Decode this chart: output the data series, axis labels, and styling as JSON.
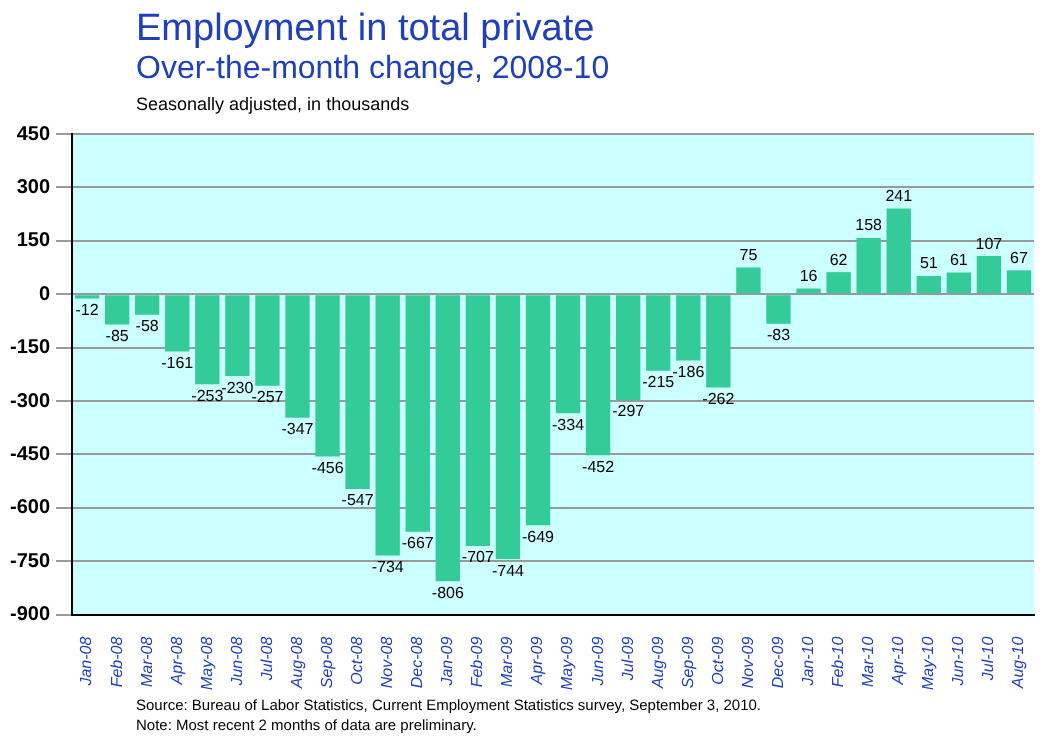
{
  "chart_data": {
    "type": "bar",
    "title": "Employment in total private",
    "subtitle": "Over-the-month change, 2008-10",
    "ylabel": "Seasonally adjusted, in thousands",
    "categories": [
      "Jan-08",
      "Feb-08",
      "Mar-08",
      "Apr-08",
      "May-08",
      "Jun-08",
      "Jul-08",
      "Aug-08",
      "Sep-08",
      "Oct-08",
      "Nov-08",
      "Dec-08",
      "Jan-09",
      "Feb-09",
      "Mar-09",
      "Apr-09",
      "May-09",
      "Jun-09",
      "Jul-09",
      "Aug-09",
      "Sep-09",
      "Oct-09",
      "Nov-09",
      "Dec-09",
      "Jan-10",
      "Feb-10",
      "Mar-10",
      "Apr-10",
      "May-10",
      "Jun-10",
      "Jul-10",
      "Aug-10"
    ],
    "values": [
      -12,
      -85,
      -58,
      -161,
      -253,
      -230,
      -257,
      -347,
      -456,
      -547,
      -734,
      -667,
      -806,
      -707,
      -744,
      -649,
      -334,
      -452,
      -297,
      -215,
      -186,
      -262,
      75,
      -83,
      16,
      62,
      158,
      241,
      51,
      61,
      107,
      67
    ],
    "color": "#33cc99",
    "ylim": [
      -900,
      450
    ],
    "yticks": [
      -900,
      -750,
      -600,
      -450,
      -300,
      -150,
      0,
      150,
      300,
      450
    ],
    "grid": "y",
    "data_labels": true,
    "annotations": [
      "Source:  Bureau of Labor Statistics, Current Employment Statistics survey, September 3, 2010.",
      "Note: Most recent 2 months of data are preliminary."
    ]
  }
}
